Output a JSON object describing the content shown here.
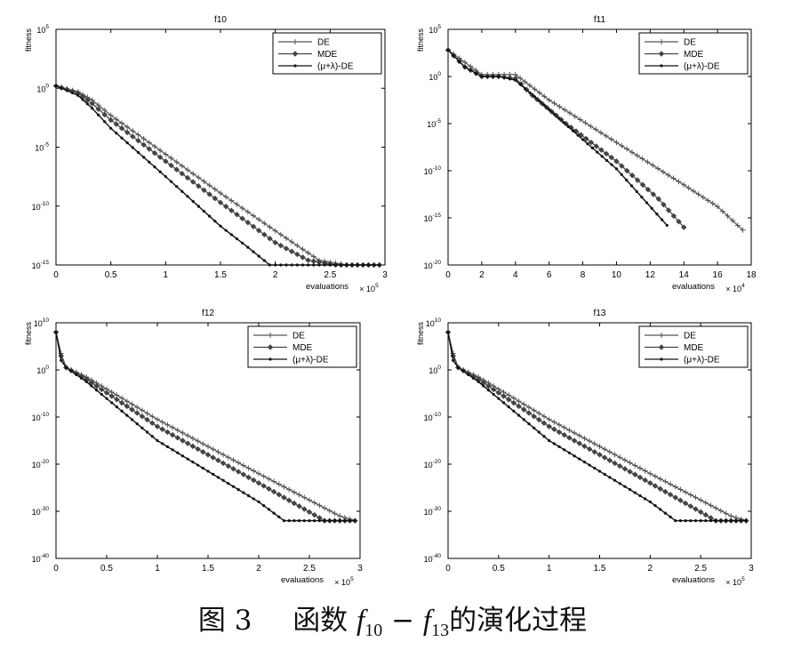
{
  "caption": {
    "prefix": "图 3",
    "word": "函数",
    "f_a": "f",
    "sub_a": "10",
    "dash": "−",
    "f_b": "f",
    "sub_b": "13",
    "suffix": "的演化过程"
  },
  "colors": {
    "axes": "#000000",
    "line": "#3a3a3a",
    "de": "#555555",
    "mde": "#444444",
    "mulambda": "#111111"
  },
  "chart_data": [
    {
      "type": "line",
      "title": "f10",
      "xlabel": "evaluations",
      "ylabel": "fitness",
      "x_multiplier": "× 10^5",
      "xlim": [
        0,
        3
      ],
      "ylim_log10": [
        -15,
        5
      ],
      "y_scale": "log",
      "xticks": [
        "0",
        "0.5",
        "1",
        "1.5",
        "2",
        "2.5",
        "3"
      ],
      "yticks_exp": [
        5,
        0,
        -5,
        -10,
        -15
      ],
      "legend": {
        "placement": "top-right",
        "entries": [
          "DE",
          "MDE",
          "(μ+λ)-DE"
        ]
      },
      "series": [
        {
          "name": "DE",
          "marker": "plus",
          "x": [
            0,
            0.2,
            0.33,
            0.5,
            1.0,
            1.5,
            2.0,
            2.4,
            2.65,
            2.95
          ],
          "log10_y": [
            0.2,
            -0.3,
            -1.0,
            -2.3,
            -5.6,
            -8.9,
            -12.1,
            -14.6,
            -15.0,
            -15.0
          ]
        },
        {
          "name": "MDE",
          "marker": "diamond",
          "x": [
            0,
            0.2,
            0.33,
            0.5,
            1.0,
            1.5,
            2.0,
            2.3,
            2.55,
            2.95
          ],
          "log10_y": [
            0.2,
            -0.4,
            -1.3,
            -2.7,
            -6.2,
            -9.7,
            -13.1,
            -14.6,
            -15.0,
            -15.0
          ]
        },
        {
          "name": "(μ+λ)-DE",
          "marker": "dot",
          "x": [
            0,
            0.2,
            0.33,
            0.5,
            1.0,
            1.5,
            1.75,
            1.95,
            2.95
          ],
          "log10_y": [
            0.2,
            -0.6,
            -1.7,
            -3.4,
            -7.5,
            -11.7,
            -13.5,
            -15.0,
            -15.0
          ]
        }
      ]
    },
    {
      "type": "line",
      "title": "f11",
      "xlabel": "evaluations",
      "ylabel": "fitness",
      "x_multiplier": "× 10^4",
      "xlim": [
        0,
        18
      ],
      "ylim_log10": [
        -20,
        5
      ],
      "y_scale": "log",
      "xticks": [
        "0",
        "2",
        "4",
        "6",
        "8",
        "10",
        "12",
        "14",
        "16",
        "18"
      ],
      "yticks_exp": [
        5,
        0,
        -5,
        -10,
        -15,
        -20
      ],
      "legend": {
        "placement": "top-right",
        "entries": [
          "DE",
          "MDE",
          "(μ+λ)-DE"
        ]
      },
      "series": [
        {
          "name": "DE",
          "marker": "plus",
          "x": [
            0,
            1,
            2,
            3,
            4,
            6,
            10,
            14,
            16,
            17.5
          ],
          "log10_y": [
            2.8,
            1.5,
            0.2,
            0.2,
            0.2,
            -2.5,
            -7.0,
            -11.5,
            -13.8,
            -16.3
          ]
        },
        {
          "name": "MDE",
          "marker": "diamond",
          "x": [
            0,
            1,
            2,
            3,
            4,
            5,
            7,
            10,
            12.5,
            14
          ],
          "log10_y": [
            2.8,
            1.0,
            0.0,
            0.0,
            -0.2,
            -2.0,
            -5.0,
            -9.0,
            -13.0,
            -16.0
          ]
        },
        {
          "name": "(μ+λ)-DE",
          "marker": "dot",
          "x": [
            0,
            1,
            2,
            3,
            4,
            6,
            8,
            10,
            13
          ],
          "log10_y": [
            2.8,
            1.0,
            0.0,
            0.0,
            -0.4,
            -3.5,
            -6.7,
            -9.8,
            -15.8
          ]
        }
      ]
    },
    {
      "type": "line",
      "title": "f12",
      "xlabel": "evaluations",
      "ylabel": "fitness",
      "x_multiplier": "× 10^5",
      "xlim": [
        0,
        3
      ],
      "ylim_log10": [
        -40,
        10
      ],
      "y_scale": "log",
      "xticks": [
        "0",
        "0.5",
        "1",
        "1.5",
        "2",
        "2.5",
        "3"
      ],
      "yticks_exp": [
        10,
        0,
        -10,
        -20,
        -30,
        -40
      ],
      "legend": {
        "placement": "top-right",
        "entries": [
          "DE",
          "MDE",
          "(μ+λ)-DE"
        ]
      },
      "series": [
        {
          "name": "DE",
          "marker": "plus",
          "x": [
            0,
            0.05,
            0.1,
            0.3,
            1.0,
            2.0,
            2.8,
            2.95
          ],
          "log10_y": [
            8.0,
            3.5,
            0.5,
            -1.5,
            -10.5,
            -22.0,
            -31.0,
            -32.0
          ]
        },
        {
          "name": "MDE",
          "marker": "diamond",
          "x": [
            0,
            0.05,
            0.1,
            0.3,
            1.0,
            2.0,
            2.65,
            2.95
          ],
          "log10_y": [
            8.0,
            3.0,
            0.5,
            -2.0,
            -12.0,
            -24.0,
            -32.0,
            -32.0
          ]
        },
        {
          "name": "(μ+λ)-DE",
          "marker": "dot",
          "x": [
            0,
            0.05,
            0.1,
            0.3,
            1.0,
            2.0,
            2.25,
            2.95
          ],
          "log10_y": [
            8.0,
            2.0,
            0.5,
            -2.5,
            -15.0,
            -28.0,
            -32.0,
            -32.0
          ]
        }
      ]
    },
    {
      "type": "line",
      "title": "f13",
      "xlabel": "evaluations",
      "ylabel": "fitness",
      "x_multiplier": "× 10^5",
      "xlim": [
        0,
        3
      ],
      "ylim_log10": [
        -40,
        10
      ],
      "y_scale": "log",
      "xticks": [
        "0",
        "0.5",
        "1",
        "1.5",
        "2",
        "2.5",
        "3"
      ],
      "yticks_exp": [
        10,
        0,
        -10,
        -20,
        -30,
        -40
      ],
      "legend": {
        "placement": "top-right",
        "entries": [
          "DE",
          "MDE",
          "(μ+λ)-DE"
        ]
      },
      "series": [
        {
          "name": "DE",
          "marker": "plus",
          "x": [
            0,
            0.05,
            0.1,
            0.3,
            1.0,
            2.0,
            2.8,
            2.95
          ],
          "log10_y": [
            8.0,
            3.5,
            0.5,
            -1.5,
            -10.5,
            -22.0,
            -31.0,
            -32.0
          ]
        },
        {
          "name": "MDE",
          "marker": "diamond",
          "x": [
            0,
            0.05,
            0.1,
            0.3,
            1.0,
            2.0,
            2.65,
            2.95
          ],
          "log10_y": [
            8.0,
            3.0,
            0.5,
            -2.0,
            -12.0,
            -24.0,
            -32.0,
            -32.0
          ]
        },
        {
          "name": "(μ+λ)-DE",
          "marker": "dot",
          "x": [
            0,
            0.05,
            0.1,
            0.3,
            1.0,
            2.0,
            2.25,
            2.95
          ],
          "log10_y": [
            8.0,
            2.0,
            0.5,
            -2.5,
            -15.0,
            -28.0,
            -32.0,
            -32.0
          ]
        }
      ]
    }
  ]
}
